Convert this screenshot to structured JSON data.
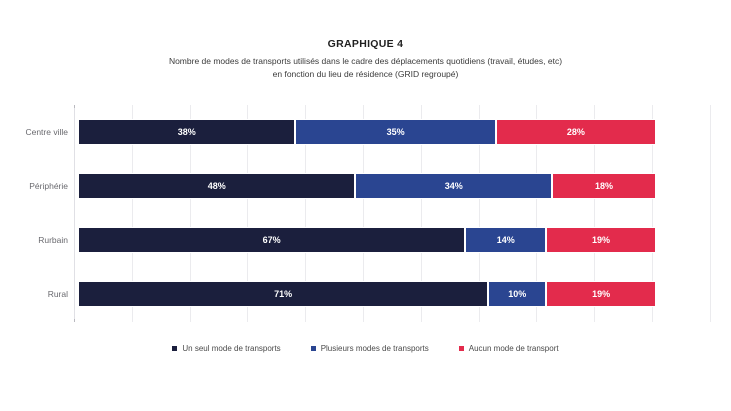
{
  "page": {
    "title": "GRAPHIQUE 4",
    "subtitle_line1": "Nombre de modes de transports utilisés dans le cadre des déplacements quotidiens (travail, études, etc)",
    "subtitle_line2": "en fonction du lieu de résidence (GRID regroupé)"
  },
  "chart_data": {
    "type": "bar",
    "orientation": "horizontal",
    "stacked": true,
    "title": "GRAPHIQUE 4",
    "subtitle": "Nombre de modes de transports utilisés dans le cadre des déplacements quotidiens (travail, études, etc) en fonction du lieu de résidence (GRID regroupé)",
    "categories": [
      "Centre ville",
      "Périphérie",
      "Rurbain",
      "Rural"
    ],
    "series": [
      {
        "name": "Un seul mode de transports",
        "color": "#1b1f3d",
        "values": [
          38,
          48,
          67,
          71
        ]
      },
      {
        "name": "Plusieurs modes de transports",
        "color": "#2a4591",
        "values": [
          35,
          34,
          14,
          10
        ]
      },
      {
        "name": "Aucun mode de transport",
        "color": "#e32b4c",
        "values": [
          28,
          18,
          19,
          19
        ]
      }
    ],
    "value_label_format": "{v}%",
    "xlabel": "",
    "ylabel": "",
    "xlim": [
      0,
      110
    ],
    "gridline_step_percent": 10,
    "grid": true,
    "legend_position": "bottom",
    "colors": {
      "gridline": "#ebebee",
      "axis_line": "#e0e0e5",
      "axis_tick": "#b9b9bf",
      "category_label": "#69696e",
      "value_label": "#ffffff",
      "legend_text": "#4a4a4a",
      "title": "#1f1f1f",
      "subtitle": "#3b3b3b"
    }
  }
}
